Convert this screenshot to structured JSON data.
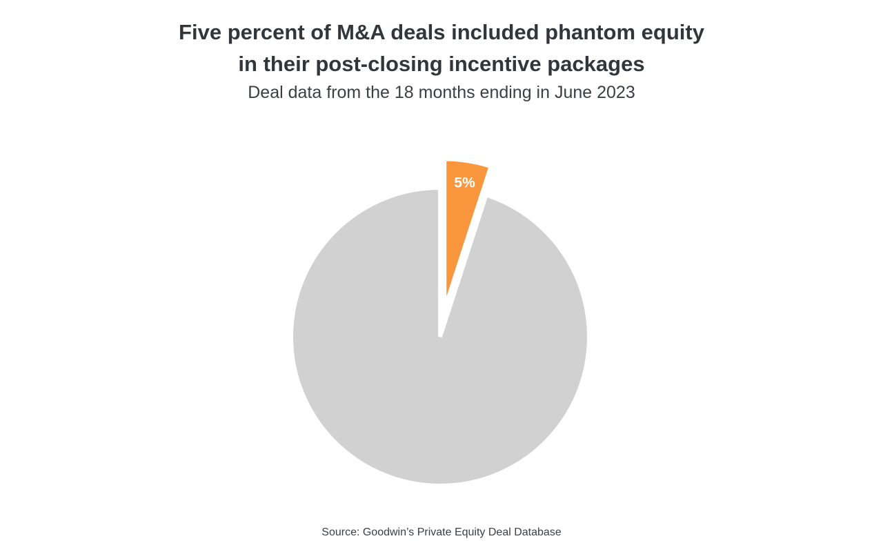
{
  "chart_data": {
    "type": "pie",
    "title_lines": [
      "Five percent of M&A deals included phantom equity",
      "in their post-closing incentive packages"
    ],
    "subtitle": "Deal data from the 18 months ending in June 2023",
    "slices": [
      {
        "value": 5,
        "label": "5%",
        "color": "#fa963e",
        "exploded": true
      },
      {
        "value": 95,
        "label": "",
        "color": "#d1d1d1",
        "exploded": false
      }
    ],
    "source": "Source: Goodwin’s Private Equity Deal Database"
  }
}
